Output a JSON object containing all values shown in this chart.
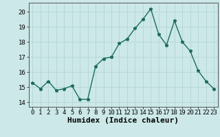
{
  "x": [
    0,
    1,
    2,
    3,
    4,
    5,
    6,
    7,
    8,
    9,
    10,
    11,
    12,
    13,
    14,
    15,
    16,
    17,
    18,
    19,
    20,
    21,
    22,
    23
  ],
  "y": [
    15.3,
    14.9,
    15.4,
    14.8,
    14.9,
    15.1,
    14.2,
    14.2,
    16.4,
    16.9,
    17.0,
    17.9,
    18.2,
    18.9,
    19.5,
    20.2,
    18.5,
    17.8,
    19.4,
    18.0,
    17.4,
    16.1,
    15.4,
    14.9
  ],
  "xlabel": "Humidex (Indice chaleur)",
  "ylim": [
    13.7,
    20.6
  ],
  "xlim": [
    -0.5,
    23.5
  ],
  "yticks": [
    14,
    15,
    16,
    17,
    18,
    19,
    20
  ],
  "xticks": [
    0,
    1,
    2,
    3,
    4,
    5,
    6,
    7,
    8,
    9,
    10,
    11,
    12,
    13,
    14,
    15,
    16,
    17,
    18,
    19,
    20,
    21,
    22,
    23
  ],
  "line_color": "#1a6b5e",
  "marker": "*",
  "marker_size": 3.5,
  "bg_color": "#cce8e8",
  "grid_color": "#b8d8d8",
  "tick_label_fontsize": 6.5,
  "xlabel_fontsize": 8,
  "line_width": 1.0
}
